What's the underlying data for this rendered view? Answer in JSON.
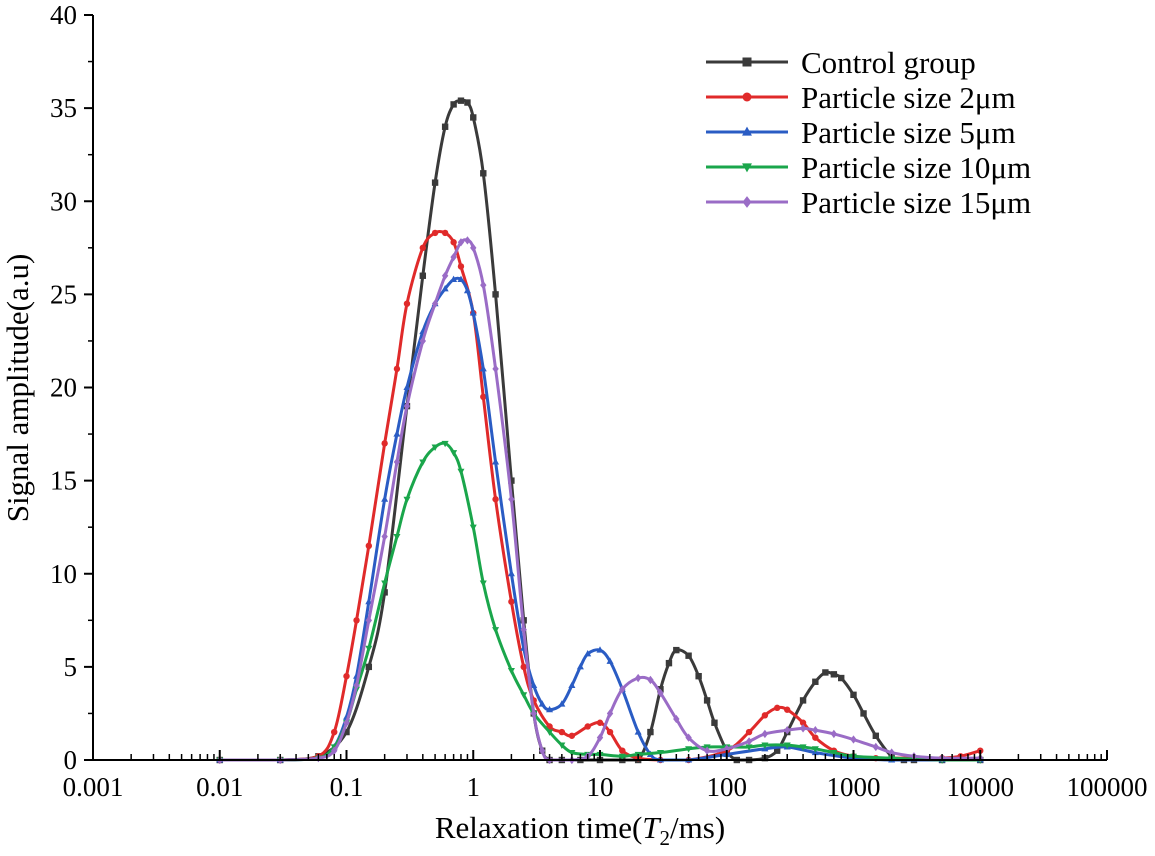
{
  "chart_data": {
    "type": "line",
    "title": "",
    "xlabel_prefix": "Relaxation time(",
    "xlabel_var": "T",
    "xlabel_sub": "2",
    "xlabel_suffix": "/ms)",
    "ylabel": "Signal amplitude(a.u)",
    "x_scale": "log",
    "xlim": [
      0.001,
      100000
    ],
    "ylim": [
      0,
      40
    ],
    "x_ticks": [
      0.001,
      0.01,
      0.1,
      1,
      10,
      100,
      1000,
      10000,
      100000
    ],
    "x_tick_labels": [
      "0.001",
      "0.01",
      "0.1",
      "1",
      "10",
      "100",
      "1000",
      "10000",
      "100000"
    ],
    "y_ticks": [
      0,
      5,
      10,
      15,
      20,
      25,
      30,
      35,
      40
    ],
    "y_tick_labels": [
      "0",
      "5",
      "10",
      "15",
      "20",
      "25",
      "30",
      "35",
      "40"
    ],
    "grid": false,
    "legend_position": "top-right",
    "series": [
      {
        "name": "Control group",
        "color": "#3a3a3a",
        "marker": "square",
        "x": [
          0.01,
          0.03,
          0.06,
          0.1,
          0.15,
          0.2,
          0.3,
          0.4,
          0.5,
          0.6,
          0.7,
          0.8,
          0.9,
          1.0,
          1.2,
          1.5,
          2.0,
          2.5,
          3.0,
          3.5,
          4.0,
          5.0,
          7.0,
          10,
          15,
          20,
          25,
          30,
          35,
          40,
          50,
          60,
          70,
          80,
          100,
          120,
          150,
          200,
          250,
          300,
          400,
          500,
          600,
          700,
          800,
          1000,
          1200,
          1500,
          2000,
          2500,
          3000,
          5000,
          10000
        ],
        "y": [
          0,
          0,
          0.2,
          1.5,
          5,
          9,
          19,
          26,
          31,
          34,
          35.2,
          35.4,
          35.3,
          34.5,
          31.5,
          25,
          15,
          7.5,
          2.5,
          0.5,
          0,
          0,
          0,
          0,
          0,
          0,
          1.5,
          3.8,
          5.2,
          5.9,
          5.6,
          4.5,
          3.2,
          2,
          0.5,
          0,
          0,
          0.1,
          0.5,
          1.5,
          3.2,
          4.2,
          4.7,
          4.6,
          4.4,
          3.5,
          2.5,
          1.3,
          0.2,
          0,
          0,
          0,
          0
        ]
      },
      {
        "name": "Particle size  2μm",
        "color": "#e02a2a",
        "marker": "circle",
        "x": [
          0.01,
          0.03,
          0.06,
          0.08,
          0.1,
          0.12,
          0.15,
          0.2,
          0.25,
          0.3,
          0.4,
          0.5,
          0.6,
          0.7,
          0.8,
          1.0,
          1.2,
          1.5,
          2.0,
          2.5,
          3.0,
          4.0,
          5.0,
          6.0,
          8.0,
          10,
          12,
          15,
          20,
          30,
          50,
          100,
          150,
          200,
          250,
          300,
          400,
          500,
          700,
          1000,
          1500,
          2000,
          3000,
          5000,
          7000,
          10000
        ],
        "y": [
          0,
          0,
          0.2,
          1.5,
          4.5,
          7.5,
          11.5,
          17,
          21,
          24.5,
          27.5,
          28.3,
          28.3,
          27.8,
          26.5,
          24,
          19.5,
          14,
          8.5,
          5,
          3.2,
          1.8,
          1.5,
          1.3,
          1.8,
          2,
          1.5,
          0.5,
          0.1,
          0,
          0,
          0.5,
          1.5,
          2.4,
          2.8,
          2.7,
          2,
          1.2,
          0.5,
          0.2,
          0.1,
          0.1,
          0.1,
          0.1,
          0.2,
          0.5
        ]
      },
      {
        "name": "Particle size  5μm",
        "color": "#2a5cc4",
        "marker": "triangle-up",
        "x": [
          0.01,
          0.03,
          0.06,
          0.08,
          0.1,
          0.12,
          0.15,
          0.2,
          0.25,
          0.3,
          0.4,
          0.5,
          0.6,
          0.7,
          0.8,
          0.9,
          1.0,
          1.2,
          1.5,
          2.0,
          2.5,
          3.0,
          3.5,
          4.0,
          5.0,
          6.0,
          7.0,
          8.0,
          10,
          12,
          15,
          20,
          25,
          30,
          50,
          100,
          200,
          300,
          500,
          1000,
          2000,
          5000,
          10000
        ],
        "y": [
          0,
          0,
          0.1,
          0.7,
          2.3,
          4.5,
          8.5,
          14,
          17.5,
          20,
          23,
          24.5,
          25.3,
          25.8,
          25.8,
          25.2,
          24,
          21,
          16,
          10,
          6,
          4,
          3,
          2.7,
          3,
          4,
          5,
          5.7,
          5.9,
          5.3,
          3.8,
          1.5,
          0.3,
          0,
          0,
          0.3,
          0.6,
          0.7,
          0.4,
          0.1,
          0,
          0,
          0
        ]
      },
      {
        "name": "Particle size 10μm",
        "color": "#1aa64b",
        "marker": "triangle-down",
        "x": [
          0.01,
          0.03,
          0.06,
          0.08,
          0.1,
          0.12,
          0.15,
          0.2,
          0.25,
          0.3,
          0.4,
          0.5,
          0.6,
          0.7,
          0.8,
          1.0,
          1.2,
          1.5,
          2.0,
          2.5,
          3.0,
          4.0,
          5.0,
          6.0,
          8.0,
          10,
          15,
          20,
          30,
          50,
          70,
          100,
          150,
          200,
          300,
          400,
          500,
          700,
          1000,
          2000,
          5000,
          10000
        ],
        "y": [
          0,
          0,
          0.1,
          0.7,
          2,
          3.8,
          6,
          9.5,
          12,
          14,
          16,
          16.8,
          17,
          16.5,
          15.5,
          12.5,
          9.5,
          7,
          4.8,
          3.5,
          2.5,
          1.5,
          0.8,
          0.4,
          0.3,
          0.3,
          0.2,
          0.3,
          0.4,
          0.6,
          0.7,
          0.7,
          0.7,
          0.8,
          0.8,
          0.7,
          0.6,
          0.4,
          0.2,
          0.1,
          0,
          0
        ]
      },
      {
        "name": "Particle size 15μm",
        "color": "#9a6cc6",
        "marker": "diamond",
        "x": [
          0.01,
          0.03,
          0.06,
          0.08,
          0.1,
          0.12,
          0.15,
          0.2,
          0.25,
          0.3,
          0.4,
          0.5,
          0.6,
          0.7,
          0.8,
          0.9,
          1.0,
          1.2,
          1.5,
          2.0,
          2.5,
          3.0,
          3.5,
          4.0,
          6.0,
          8.0,
          10,
          12,
          15,
          20,
          25,
          30,
          40,
          50,
          70,
          100,
          150,
          200,
          300,
          400,
          500,
          700,
          1000,
          1500,
          2000,
          3000,
          5000,
          10000
        ],
        "y": [
          0,
          0,
          0.1,
          0.5,
          2,
          4,
          7.5,
          12,
          16,
          19,
          22.5,
          24.5,
          26,
          27,
          27.8,
          27.9,
          27.5,
          25.5,
          21,
          14,
          7,
          2.5,
          0.5,
          0,
          0,
          0.2,
          1.2,
          2.5,
          3.8,
          4.4,
          4.3,
          3.6,
          2.2,
          1.2,
          0.5,
          0.6,
          1,
          1.4,
          1.6,
          1.7,
          1.6,
          1.4,
          1.1,
          0.7,
          0.4,
          0.2,
          0.1,
          0.1
        ]
      }
    ]
  }
}
